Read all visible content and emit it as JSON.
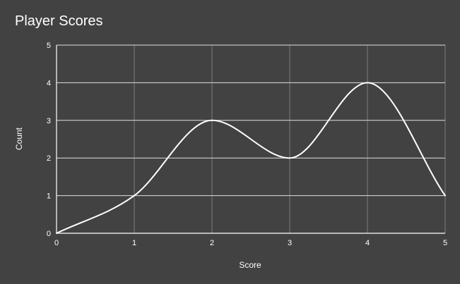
{
  "chart_data": {
    "type": "line",
    "title": "Player Scores",
    "xlabel": "Score",
    "ylabel": "Count",
    "x": [
      0,
      1,
      2,
      3,
      4,
      5
    ],
    "series": [
      {
        "values": [
          0,
          1,
          3,
          2,
          4,
          1
        ],
        "smooth": true
      }
    ],
    "xlim": [
      0,
      5
    ],
    "ylim": [
      0,
      5
    ],
    "xticks": [
      "0",
      "1",
      "2",
      "3",
      "4",
      "5"
    ],
    "yticks": [
      "0",
      "1",
      "2",
      "3",
      "4",
      "5"
    ],
    "grid": true,
    "legend": "none",
    "colors": {
      "background": "#424242",
      "line": "#ffffff",
      "grid": "#bdbdbd",
      "axis": "#ffffff",
      "text": "#ffffff"
    }
  }
}
